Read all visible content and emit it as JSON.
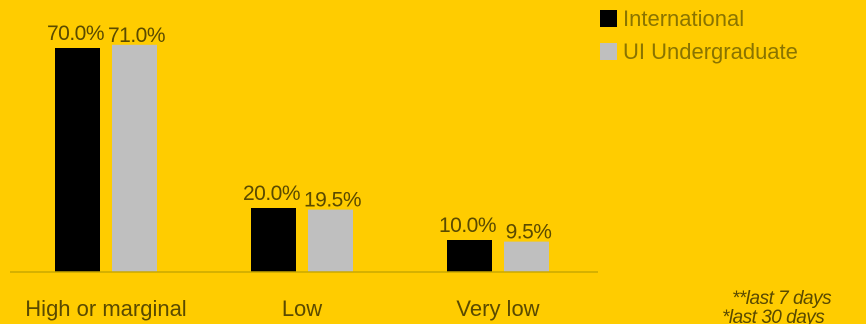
{
  "chart_data": {
    "type": "bar",
    "categories": [
      "High or marginal",
      "Low",
      "Very low"
    ],
    "series": [
      {
        "name": "International",
        "values": [
          70.0,
          20.0,
          10.0
        ],
        "labels": [
          "70.0%",
          "20.0%",
          "10.0%"
        ]
      },
      {
        "name": "UI Undergraduate",
        "values": [
          71.0,
          19.5,
          9.5
        ],
        "labels": [
          "71.0%",
          "19.5%",
          "9.5%"
        ]
      }
    ],
    "ylim": [
      0,
      75
    ],
    "grid": false,
    "legend_position": "top-right",
    "colors": {
      "background": "#FFCC00",
      "International": "#000000",
      "UI Undergraduate": "#BFBFBF",
      "label_text": "#5A4A00"
    }
  },
  "footnotes": [
    "**last 7 days",
    "*last 30 days"
  ]
}
